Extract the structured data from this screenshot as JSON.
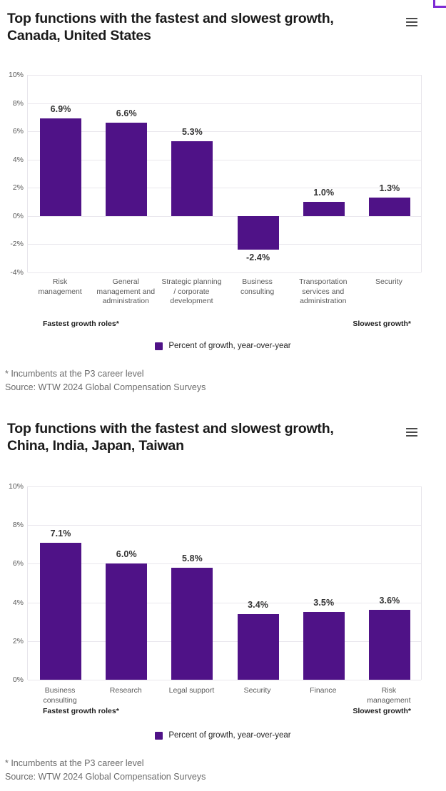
{
  "colors": {
    "bar": "#4F1287",
    "grid": "#e9e7ed",
    "axis_text": "#595959",
    "value_text": "#333333",
    "title_text": "#1a1a1a",
    "footnote_text": "#6b6b6b",
    "menu_icon": "#4a4a4a",
    "corner_frame_border": "#7d2ad4"
  },
  "chart_data": [
    {
      "type": "bar",
      "title": "Top functions with the fastest and slowest growth, Canada, United States",
      "title_lines": [
        "Top functions with the fastest and slowest growth,",
        "Canada, United States"
      ],
      "categories": [
        "Risk management",
        "General management and administration",
        "Strategic planning / corporate development",
        "Business consulting",
        "Transportation services and administration",
        "Security"
      ],
      "values": [
        6.9,
        6.6,
        5.3,
        -2.4,
        1.0,
        1.3
      ],
      "data_labels": [
        "6.9%",
        "6.6%",
        "5.3%",
        "-2.4%",
        "1.0%",
        "1.3%"
      ],
      "xlabel": "",
      "ylabel": "",
      "ylim": [
        -4,
        10
      ],
      "yticks": [
        10,
        8,
        6,
        4,
        2,
        0,
        -2,
        -4
      ],
      "ytick_labels": [
        "10%",
        "8%",
        "6%",
        "4%",
        "2%",
        "0%",
        "-2%",
        "-4%"
      ],
      "grid": "horizontal",
      "legend_position": "bottom-center",
      "legend_label": "Percent of growth, year-over-year",
      "group_label_left": "Fastest growth roles*",
      "group_label_right": "Slowest growth*",
      "footnote_line1": "* Incumbents at the P3 career level",
      "footnote_line2": "Source: WTW 2024 Global Compensation Surveys",
      "menu_icon": "hamburger-menu"
    },
    {
      "type": "bar",
      "title": "Top functions with the fastest and slowest growth, China, India, Japan, Taiwan",
      "title_lines": [
        "Top functions with the fastest and slowest growth,",
        "China, India, Japan, Taiwan"
      ],
      "categories": [
        "Business consulting",
        "Research",
        "Legal support",
        "Security",
        "Finance",
        "Risk management"
      ],
      "values": [
        7.1,
        6.0,
        5.8,
        3.4,
        3.5,
        3.6
      ],
      "data_labels": [
        "7.1%",
        "6.0%",
        "5.8%",
        "3.4%",
        "3.5%",
        "3.6%"
      ],
      "xlabel": "",
      "ylabel": "",
      "ylim": [
        0,
        10
      ],
      "yticks": [
        10,
        8,
        6,
        4,
        2,
        0
      ],
      "ytick_labels": [
        "10%",
        "8%",
        "6%",
        "4%",
        "2%",
        "0%"
      ],
      "grid": "horizontal",
      "legend_position": "bottom-center",
      "legend_label": "Percent of growth, year-over-year",
      "group_label_left": "Fastest growth roles*",
      "group_label_right": "Slowest growth*",
      "footnote_line1": "* Incumbents at the P3 career level",
      "footnote_line2": "Source: WTW 2024 Global Compensation Surveys",
      "menu_icon": "hamburger-menu"
    }
  ]
}
